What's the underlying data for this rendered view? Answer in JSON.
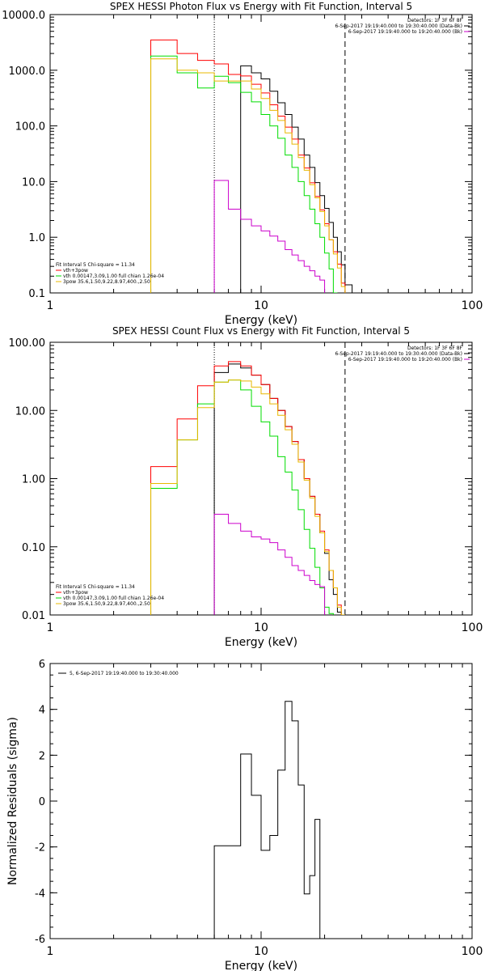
{
  "chart_data": [
    {
      "type": "line",
      "title": "SPEX HESSI Photon Flux vs Energy with Fit Function, Interval 5",
      "xlabel": "Energy (keV)",
      "ylabel": "",
      "x_scale": "log",
      "y_scale": "log",
      "xlim": [
        1,
        100
      ],
      "ylim": [
        0.1,
        10000
      ],
      "x_ticks": [
        "1",
        "10",
        "100"
      ],
      "y_ticks": [
        "0.1",
        "1.0",
        "10.0",
        "100.0",
        "1000.0",
        "10000.0"
      ],
      "info_lines": [
        "Detectors: 1F 3F 6F 8F",
        "6-Sep-2017 19:19:40.000 to 19:30:40.000 (Data-Bk)",
        "6-Sep-2017 19:19:40.000 to 19:20:40.000 (Bk)"
      ],
      "legend_lines": [
        "Fit Interval 5   Chi-square = 11.34",
        "vth+3pow",
        "vth 0.00147,3.09,1.00  full chian 1.26e-04",
        "3pow 35.6,1.50,9.22,8.97,400.,2.50"
      ],
      "edges": [
        3,
        4,
        5,
        6,
        7,
        8,
        9,
        10,
        11,
        12,
        13,
        14,
        15,
        16,
        17,
        18,
        19,
        20,
        21,
        22,
        23,
        24,
        25,
        27,
        30
      ],
      "reference_lines": [
        6,
        25
      ],
      "series": [
        {
          "name": "Data-Bk",
          "color": "#000000",
          "start": 5,
          "values": [
            1200,
            900,
            700,
            420,
            260,
            160,
            95,
            58,
            30,
            18,
            9.6,
            5.6,
            3.3,
            1.85,
            1.0,
            0.55,
            0.32,
            0.14
          ]
        },
        {
          "name": "vth+3pow",
          "color": "#ff0000",
          "start": 0,
          "values": [
            3500,
            2000,
            1500,
            1300,
            840,
            790,
            560,
            390,
            240,
            150,
            95,
            58,
            30,
            17.5,
            9.5,
            5.4,
            3.1,
            1.75,
            0.9,
            0.55,
            0.33,
            0.15
          ]
        },
        {
          "name": "vth",
          "color": "#00dd00",
          "start": 0,
          "values": [
            1800,
            900,
            480,
            780,
            600,
            400,
            270,
            160,
            100,
            60,
            30,
            18,
            10,
            5.6,
            3.2,
            1.75,
            1.0,
            0.52,
            0.27,
            0.1
          ]
        },
        {
          "name": "3pow",
          "color": "#e8b800",
          "start": 0,
          "values": [
            1600,
            1000,
            900,
            640,
            640,
            640,
            460,
            310,
            190,
            125,
            75,
            47,
            27,
            16,
            8.8,
            5.1,
            2.9,
            1.6,
            0.9,
            0.5,
            0.28,
            0.13
          ]
        },
        {
          "name": "Bk",
          "color": "#cc00cc",
          "start": 3,
          "values": [
            10.5,
            3.2,
            2.1,
            1.6,
            1.3,
            1.05,
            0.85,
            0.6,
            0.48,
            0.38,
            0.3,
            0.25,
            0.2,
            0.17
          ]
        }
      ]
    },
    {
      "type": "line",
      "title": "SPEX HESSI Count Flux vs Energy with Fit Function, Interval 5",
      "xlabel": "Energy (keV)",
      "ylabel": "",
      "x_scale": "log",
      "y_scale": "log",
      "xlim": [
        1,
        100
      ],
      "ylim": [
        0.01,
        100
      ],
      "x_ticks": [
        "1",
        "10",
        "100"
      ],
      "y_ticks": [
        "0.01",
        "0.10",
        "1.00",
        "10.00",
        "100.00"
      ],
      "info_lines": [
        "Detectors: 1F 3F 6F 8F",
        "6-Sep-2017 19:19:40.000 to 19:30:40.000 (Data-Bk)",
        "6-Sep-2017 19:19:40.000 to 19:20:40.000 (Bk)"
      ],
      "legend_lines": [
        "Fit Interval 5   Chi-square = 11.34",
        "vth+3pow",
        "vth 0.00147,3.09,1.00  full chian 1.26e-04",
        "3pow 35.6,1.50,9.22,8.97,400.,2.50"
      ],
      "edges": [
        3,
        4,
        5,
        6,
        7,
        8,
        9,
        10,
        11,
        12,
        13,
        14,
        15,
        16,
        17,
        18,
        19,
        20,
        21,
        22,
        23,
        24,
        25,
        27,
        30,
        33
      ],
      "reference_lines": [
        6,
        25
      ],
      "series": [
        {
          "name": "Data-Bk",
          "color": "#000000",
          "start": 3,
          "values": [
            36,
            48,
            42,
            33,
            24,
            15,
            10,
            5.8,
            3.5,
            1.9,
            1.0,
            0.55,
            0.3,
            0.16,
            0.08,
            0.033,
            0.02,
            0.011
          ]
        },
        {
          "name": "vth+3pow",
          "color": "#ff0000",
          "start": 0,
          "values": [
            1.5,
            7.5,
            23,
            45,
            52,
            45,
            33,
            24,
            15,
            10,
            5.8,
            3.5,
            1.9,
            1.0,
            0.55,
            0.3,
            0.17,
            0.09,
            0.045,
            0.025,
            0.014,
            0.01
          ]
        },
        {
          "name": "vth",
          "color": "#00dd00",
          "start": 0,
          "values": [
            0.72,
            3.7,
            12.5,
            26,
            28,
            20,
            11.5,
            6.8,
            4.2,
            2.1,
            1.25,
            0.68,
            0.35,
            0.18,
            0.095,
            0.05,
            0.025,
            0.013,
            0.0105
          ]
        },
        {
          "name": "3pow",
          "color": "#e8b800",
          "start": 0,
          "values": [
            0.85,
            3.7,
            11,
            26,
            28,
            27,
            22,
            17.5,
            12.5,
            8.5,
            5.2,
            3.2,
            1.75,
            0.95,
            0.52,
            0.28,
            0.16,
            0.085,
            0.045,
            0.025,
            0.013,
            0.01
          ]
        },
        {
          "name": "Bk",
          "color": "#cc00cc",
          "start": 3,
          "values": [
            0.3,
            0.22,
            0.17,
            0.14,
            0.13,
            0.115,
            0.09,
            0.07,
            0.053,
            0.045,
            0.038,
            0.032,
            0.028,
            0.026
          ]
        }
      ]
    },
    {
      "type": "line",
      "title": "",
      "xlabel": "Energy (keV)",
      "ylabel": "Normalized Residuals (sigma)",
      "x_scale": "log",
      "y_scale": "linear",
      "xlim": [
        1,
        100
      ],
      "ylim": [
        -6,
        6
      ],
      "x_ticks": [
        "1",
        "10",
        "100"
      ],
      "y_ticks": [
        "-6",
        "-4",
        "-2",
        "0",
        "2",
        "4",
        "6"
      ],
      "legend_lines": [
        "5, 6-Sep-2017 19:19:40.000 to 19:30:40.000"
      ],
      "edges": [
        6,
        7,
        8,
        9,
        10,
        11,
        12,
        13,
        14,
        15,
        16,
        17,
        18,
        19,
        20,
        22,
        25
      ],
      "series": [
        {
          "name": "5, 6-Sep-2017 19:19:40.000 to 19:30:40.000",
          "color": "#000000",
          "values": [
            -1.95,
            -1.95,
            2.05,
            0.25,
            -2.15,
            -1.5,
            1.35,
            4.35,
            3.5,
            0.7,
            -4.05,
            -3.25,
            -0.8
          ]
        }
      ]
    }
  ]
}
